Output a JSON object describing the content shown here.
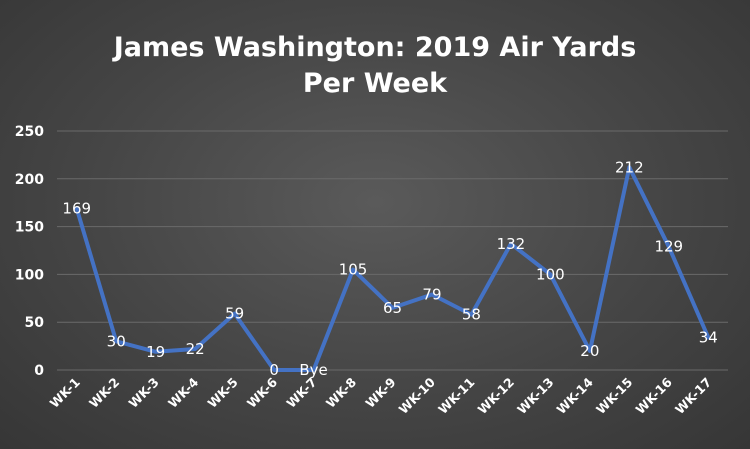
{
  "chart_data": {
    "type": "line",
    "title": [
      "James Washington: 2019 Air Yards",
      "Per Week"
    ],
    "xlabel": "",
    "ylabel": "",
    "ylim": [
      0,
      250
    ],
    "yticks": [
      0,
      50,
      100,
      150,
      200,
      250
    ],
    "grid": true,
    "categories": [
      "WK-1",
      "WK-2",
      "WK-3",
      "WK-4",
      "WK-5",
      "WK-6",
      "WK-7",
      "WK-8",
      "WK-9",
      "WK-10",
      "WK-11",
      "WK-12",
      "WK-13",
      "WK-14",
      "WK-15",
      "WK-16",
      "WK-17"
    ],
    "series": [
      {
        "color": "#4472C4",
        "values": [
          169,
          30,
          19,
          22,
          59,
          0,
          0,
          105,
          65,
          79,
          58,
          132,
          100,
          20,
          212,
          129,
          34
        ],
        "data_labels": [
          "169",
          "30",
          "19",
          "22",
          "59",
          "0",
          "Bye",
          "105",
          "65",
          "79",
          "58",
          "132",
          "100",
          "20",
          "212",
          "129",
          "34"
        ]
      }
    ]
  }
}
